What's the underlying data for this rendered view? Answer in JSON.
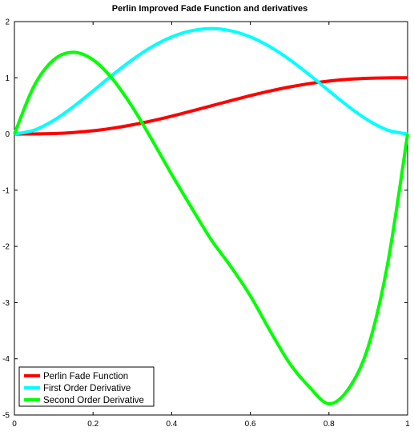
{
  "chart_data": {
    "type": "line",
    "title": "Perlin Improved Fade Function and derivatives",
    "xlabel": "",
    "ylabel": "",
    "xlim": [
      0,
      1
    ],
    "ylim": [
      -5,
      2
    ],
    "grid": false,
    "legend_position": "bottom-left",
    "x_ticks": [
      0,
      0.2,
      0.4,
      0.6,
      0.8,
      1
    ],
    "x_tick_labels": [
      "0",
      "0.2",
      "0.4",
      "0.6",
      "0.8",
      "1"
    ],
    "y_ticks": [
      -5,
      -4,
      -3,
      -2,
      -1,
      0,
      1,
      2
    ],
    "y_tick_labels": [
      "-5",
      "-4",
      "-3",
      "-2",
      "-1",
      "0",
      "1",
      "2"
    ],
    "x": [
      0,
      0.05,
      0.1,
      0.15,
      0.2,
      0.25,
      0.3,
      0.35,
      0.4,
      0.45,
      0.5,
      0.55,
      0.6,
      0.65,
      0.7,
      0.75,
      0.8,
      0.85,
      0.9,
      0.95,
      1
    ],
    "series": [
      {
        "name": "Perlin Fade Function",
        "color": "#ff0000",
        "values": [
          0,
          0.0012,
          0.0086,
          0.0266,
          0.0579,
          0.1035,
          0.1631,
          0.2352,
          0.3174,
          0.4069,
          0.5,
          0.5931,
          0.6826,
          0.7648,
          0.8369,
          0.8965,
          0.9421,
          0.9734,
          0.9914,
          0.9988,
          1
        ]
      },
      {
        "name": "First Order Derivative",
        "color": "#00ffff",
        "values": [
          0,
          0.0677,
          0.243,
          0.4877,
          0.768,
          1.0547,
          1.323,
          1.5527,
          1.728,
          1.8377,
          1.875,
          1.8377,
          1.728,
          1.5527,
          1.323,
          1.0547,
          0.768,
          0.4877,
          0.243,
          0.0677,
          0
        ]
      },
      {
        "name": "Second Order Derivative",
        "color": "#00ff00",
        "values": [
          0,
          0.855,
          1.32,
          1.4535,
          1.32,
          0.975,
          0.48,
          -0.105,
          -0.72,
          -1.305,
          -1.875,
          -2.355,
          -2.88,
          -3.5,
          -4.08,
          -4.5,
          -4.8,
          -4.53,
          -3.78,
          -2.28,
          0
        ]
      }
    ]
  }
}
